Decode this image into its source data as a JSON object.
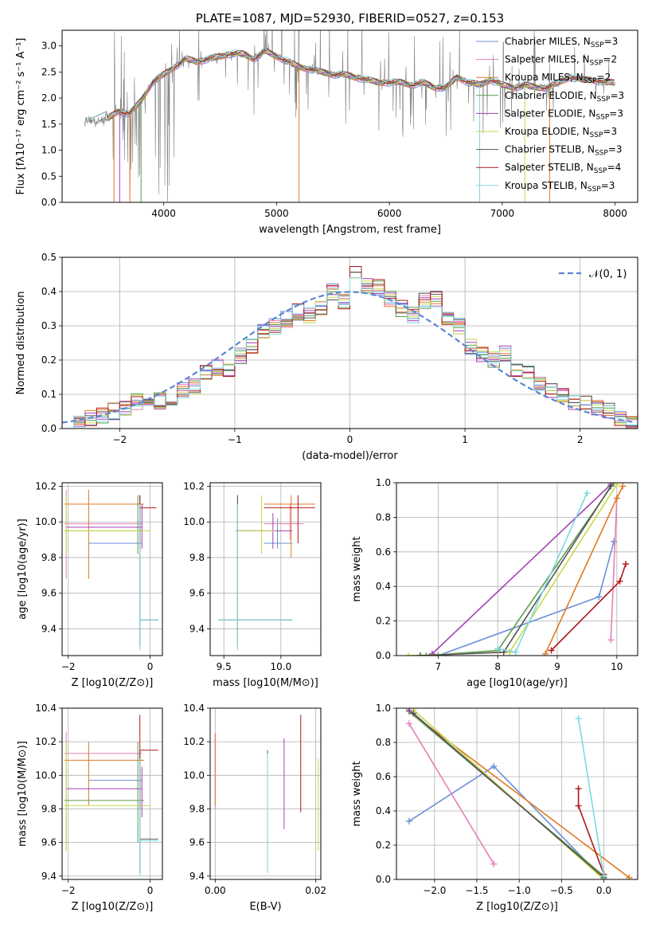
{
  "colors": [
    "#6a8fd8",
    "#e87fb8",
    "#e07a22",
    "#5a9e4a",
    "#a63db8",
    "#c8d84a",
    "#555555",
    "#b01818",
    "#7fd8e0"
  ],
  "chart_data": [
    {
      "type": "line",
      "title": "PLATE=1087, MJD=52930, FIBERID=0527, z=0.153",
      "xlabel": "wavelength [Angstrom, rest frame]",
      "ylabel": "Flux [fλ10⁻¹⁷ erg cm⁻² s⁻¹ A⁻¹]",
      "xlim": [
        3100,
        8200
      ],
      "ylim": [
        0,
        3.3
      ],
      "xticks": [
        4000,
        5000,
        6000,
        7000,
        8000
      ],
      "yticks": [
        0.0,
        0.5,
        1.0,
        1.5,
        2.0,
        2.5,
        3.0
      ],
      "xticklabels": [
        "4000",
        "5000",
        "6000",
        "7000",
        "8000"
      ],
      "yticklabels": [
        "0.0",
        "0.5",
        "1.0",
        "1.5",
        "2.0",
        "2.5",
        "3.0"
      ],
      "grid": false,
      "legend_position": "top-right",
      "legend": [
        "Chabrier MILES, N_SSP=3",
        "Salpeter MILES, N_SSP=2",
        "Kroupa MILES, N_SSP=2",
        "Chabrier ELODIE, N_SSP=3",
        "Salpeter ELODIE, N_SSP=3",
        "Kroupa ELODIE, N_SSP=3",
        "Chabrier STELIB, N_SSP=3",
        "Salpeter STELIB, N_SSP=4",
        "Kroupa STELIB, N_SSP=3"
      ],
      "spectrum_x": [
        3300,
        3400,
        3500,
        3600,
        3700,
        3800,
        3900,
        4000,
        4100,
        4200,
        4300,
        4400,
        4500,
        4600,
        4700,
        4800,
        4900,
        5000,
        5100,
        5200,
        5300,
        5400,
        5500,
        5600,
        5700,
        5800,
        5900,
        6000,
        6100,
        6200,
        6300,
        6400,
        6500,
        6600,
        6700,
        6800,
        6900,
        7000,
        7100,
        7200,
        7300,
        7400,
        7500,
        7600,
        7700,
        7800,
        7900,
        8000
      ],
      "spectrum_y": [
        1.6,
        1.55,
        1.6,
        1.75,
        1.7,
        1.95,
        2.3,
        2.45,
        2.6,
        2.75,
        2.7,
        2.75,
        2.8,
        2.85,
        2.85,
        2.75,
        2.9,
        2.8,
        2.7,
        2.6,
        2.55,
        2.5,
        2.45,
        2.45,
        2.4,
        2.35,
        2.3,
        2.3,
        2.3,
        2.25,
        2.3,
        2.2,
        2.2,
        2.4,
        2.3,
        2.25,
        2.35,
        2.25,
        2.2,
        2.25,
        2.2,
        2.2,
        2.3,
        2.4,
        2.35,
        2.35,
        2.3,
        2.3
      ]
    },
    {
      "type": "step",
      "xlabel": "(data-model)/error",
      "ylabel": "Normed distribution",
      "xlim": [
        -2.5,
        2.5
      ],
      "ylim": [
        0,
        0.5
      ],
      "xticks": [
        -2,
        -1,
        0,
        1,
        2
      ],
      "yticks": [
        0.0,
        0.1,
        0.2,
        0.3,
        0.4,
        0.5
      ],
      "xticklabels": [
        "−2",
        "−1",
        "0",
        "1",
        "2"
      ],
      "yticklabels": [
        "0.0",
        "0.1",
        "0.2",
        "0.3",
        "0.4",
        "0.5"
      ],
      "grid": true,
      "legend_position": "top-right",
      "legend": [
        "𝒩(0, 1)"
      ],
      "bin_edges_start": -2.5,
      "bin_width": 0.1,
      "hist": [
        0.02,
        0.02,
        0.03,
        0.04,
        0.05,
        0.06,
        0.08,
        0.07,
        0.08,
        0.09,
        0.11,
        0.12,
        0.16,
        0.18,
        0.17,
        0.21,
        0.24,
        0.28,
        0.3,
        0.32,
        0.34,
        0.33,
        0.35,
        0.4,
        0.37,
        0.46,
        0.42,
        0.41,
        0.38,
        0.35,
        0.33,
        0.37,
        0.38,
        0.32,
        0.3,
        0.24,
        0.22,
        0.2,
        0.22,
        0.17,
        0.16,
        0.13,
        0.11,
        0.1,
        0.08,
        0.07,
        0.06,
        0.05,
        0.03,
        0.02
      ]
    },
    {
      "type": "scatter",
      "xlabel": "Z [log10(Z/Z⊙)]",
      "ylabel": "age  [log10(age/yr)]",
      "xlim": [
        -2.15,
        0.3
      ],
      "ylim": [
        9.25,
        10.22
      ],
      "xticks": [
        -2,
        0
      ],
      "xticklabels": [
        "−2",
        "0"
      ],
      "yticks": [
        9.4,
        9.6,
        9.8,
        10.0,
        10.2
      ],
      "yticklabels": [
        "9.4",
        "9.6",
        "9.8",
        "10.0",
        "10.2"
      ],
      "grid": true
    },
    {
      "type": "scatter",
      "xlabel": "mass [log10(M/M⊙)]",
      "xlim": [
        9.38,
        10.35
      ],
      "ylim": [
        9.25,
        10.22
      ],
      "xticks": [
        9.5,
        10.0
      ],
      "xticklabels": [
        "9.5",
        "10.0"
      ],
      "yticks": [
        9.4,
        9.6,
        9.8,
        10.0,
        10.2
      ],
      "yticklabels": [
        "9.4",
        "9.6",
        "9.8",
        "10.0",
        "10.2"
      ],
      "grid": true
    },
    {
      "type": "line",
      "xlabel": "age  [log10(age/yr)]",
      "ylabel": "mass weight",
      "xlim": [
        6.3,
        10.35
      ],
      "ylim": [
        0,
        1.0
      ],
      "xticks": [
        7,
        8,
        9,
        10
      ],
      "xticklabels": [
        "7",
        "8",
        "9",
        "10"
      ],
      "yticks": [
        0.0,
        0.2,
        0.4,
        0.6,
        0.8,
        1.0
      ],
      "yticklabels": [
        "0.0",
        "0.2",
        "0.4",
        "0.6",
        "0.8",
        "1.0"
      ],
      "grid": true,
      "series": [
        {
          "x": [
            7.0,
            9.7,
            9.95
          ],
          "y": [
            0.0,
            0.34,
            0.66
          ]
        },
        {
          "x": [
            9.9,
            10.0
          ],
          "y": [
            0.09,
            0.91
          ]
        },
        {
          "x": [
            8.8,
            10.0,
            10.1
          ],
          "y": [
            0.01,
            0.91,
            0.98
          ]
        },
        {
          "x": [
            6.8,
            8.0,
            9.95
          ],
          "y": [
            0.0,
            0.03,
            1.0
          ]
        },
        {
          "x": [
            6.9,
            9.9
          ],
          "y": [
            0.01,
            0.99
          ]
        },
        {
          "x": [
            6.5,
            8.2,
            10.0
          ],
          "y": [
            0.0,
            0.02,
            0.99
          ]
        },
        {
          "x": [
            6.7,
            8.1,
            9.9
          ],
          "y": [
            0.0,
            0.02,
            0.98
          ]
        },
        {
          "x": [
            8.9,
            10.05,
            10.15
          ],
          "y": [
            0.03,
            0.43,
            0.53
          ]
        },
        {
          "x": [
            8.0,
            8.3,
            9.5
          ],
          "y": [
            0.04,
            0.02,
            0.94
          ]
        }
      ]
    },
    {
      "type": "scatter",
      "xlabel": "Z [log10(Z/Z⊙)]",
      "ylabel": "mass [log10(M/M⊙)]",
      "xlim": [
        -2.15,
        0.3
      ],
      "ylim": [
        9.38,
        10.4
      ],
      "xticks": [
        -2,
        0
      ],
      "xticklabels": [
        "−2",
        "0"
      ],
      "yticks": [
        9.4,
        9.6,
        9.8,
        10.0,
        10.2,
        10.4
      ],
      "yticklabels": [
        "9.4",
        "9.6",
        "9.8",
        "10.0",
        "10.2",
        "10.4"
      ],
      "grid": true
    },
    {
      "type": "scatter",
      "xlabel": "E(B-V)",
      "xlim": [
        -0.001,
        0.021
      ],
      "ylim": [
        9.38,
        10.4
      ],
      "xticks": [
        0.0,
        0.02
      ],
      "xticklabels": [
        "0.00",
        "0.02"
      ],
      "yticks": [
        9.4,
        9.6,
        9.8,
        10.0,
        10.2,
        10.4
      ],
      "yticklabels": [
        "9.4",
        "9.6",
        "9.8",
        "10.0",
        "10.2",
        "10.4"
      ],
      "grid": true
    },
    {
      "type": "line",
      "xlabel": "Z [log10(Z/Z⊙)]",
      "ylabel": "mass weight",
      "xlim": [
        -2.45,
        0.4
      ],
      "ylim": [
        0,
        1.0
      ],
      "xticks": [
        -2.0,
        -1.5,
        -1.0,
        -0.5,
        0.0
      ],
      "xticklabels": [
        "−2.0",
        "−1.5",
        "−1.0",
        "−0.5",
        "0.0"
      ],
      "yticks": [
        0.0,
        0.2,
        0.4,
        0.6,
        0.8,
        1.0
      ],
      "yticklabels": [
        "0.0",
        "0.2",
        "0.4",
        "0.6",
        "0.8",
        "1.0"
      ],
      "grid": true,
      "series": [
        {
          "x": [
            -2.3,
            -1.3,
            0.0
          ],
          "y": [
            0.34,
            0.66,
            0.0
          ]
        },
        {
          "x": [
            -2.3,
            -1.3
          ],
          "y": [
            0.91,
            0.09
          ]
        },
        {
          "x": [
            -2.3,
            0.3
          ],
          "y": [
            0.98,
            0.01
          ]
        },
        {
          "x": [
            -2.3,
            0.0
          ],
          "y": [
            0.98,
            0.02
          ]
        },
        {
          "x": [
            -2.3,
            0.0
          ],
          "y": [
            0.99,
            0.01
          ]
        },
        {
          "x": [
            -2.25,
            0.0
          ],
          "y": [
            0.99,
            0.0
          ]
        },
        {
          "x": [
            -2.25,
            0.0
          ],
          "y": [
            0.97,
            0.01
          ]
        },
        {
          "x": [
            -0.3,
            -0.3,
            0.0
          ],
          "y": [
            0.53,
            0.43,
            0.03
          ]
        },
        {
          "x": [
            -0.3,
            0.0
          ],
          "y": [
            0.94,
            0.02
          ]
        }
      ]
    }
  ]
}
